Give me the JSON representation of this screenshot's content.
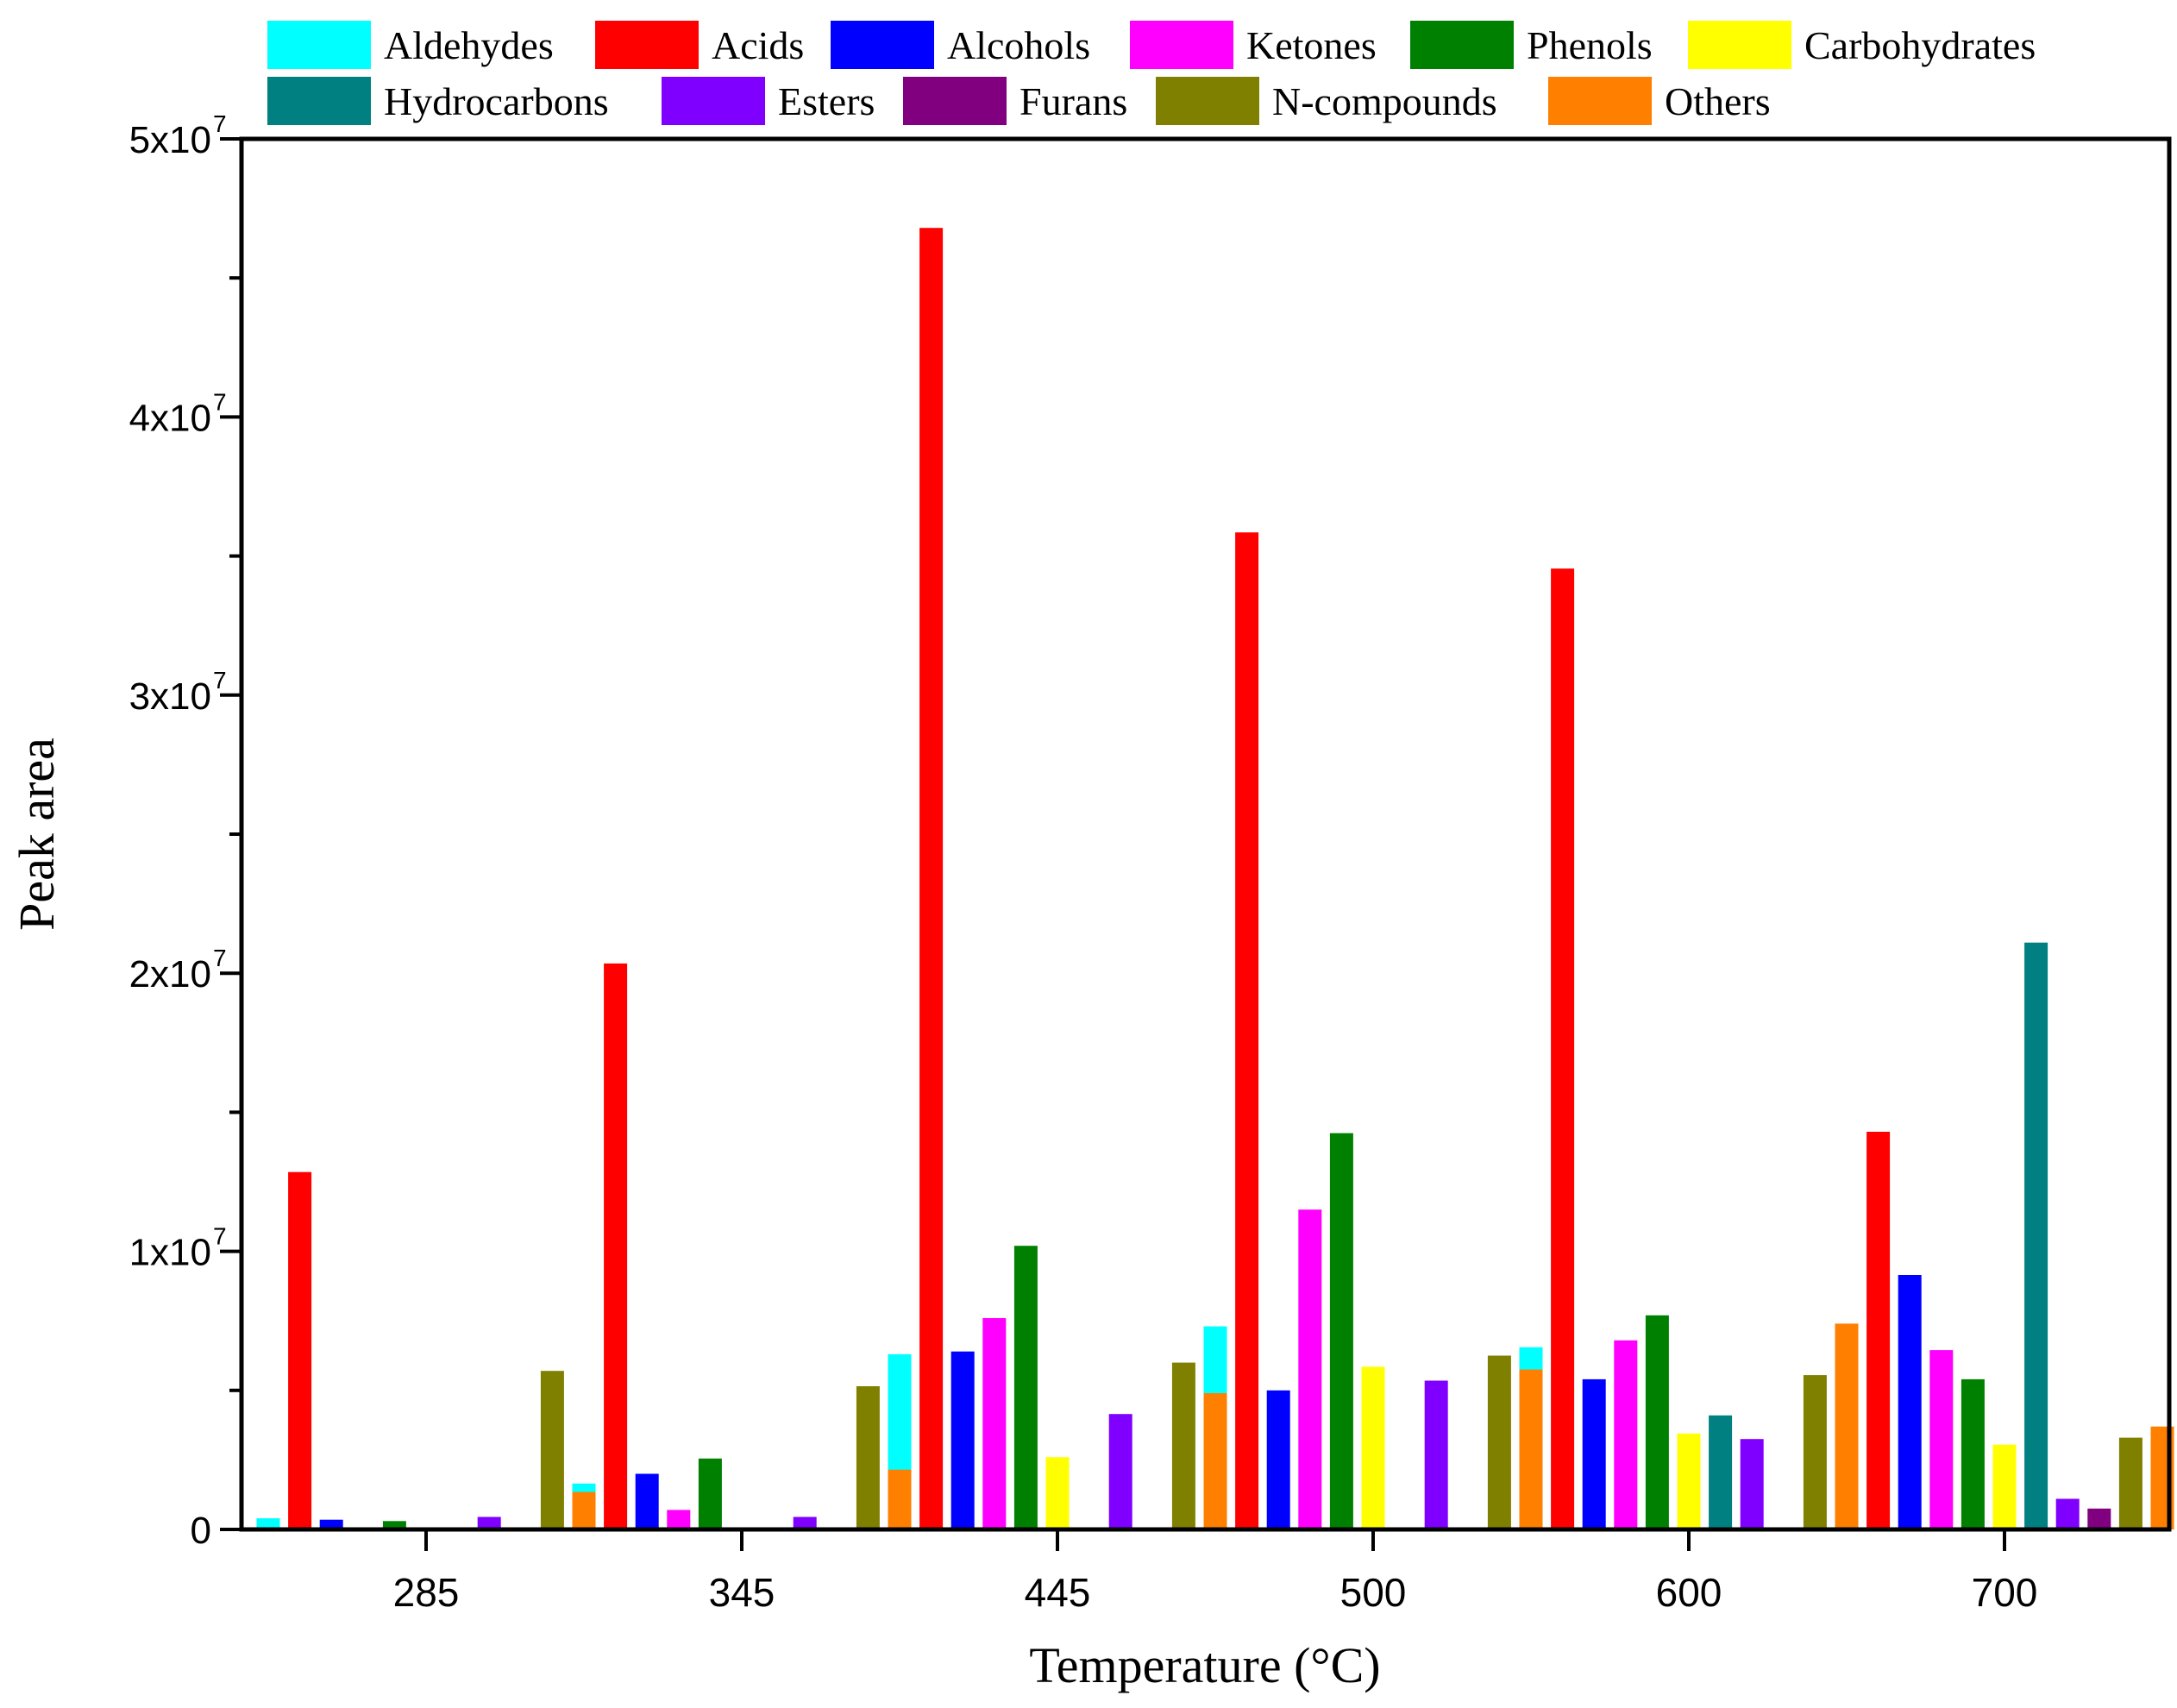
{
  "chart_data": {
    "type": "bar",
    "title": "",
    "xlabel": "Temperature (°C)",
    "ylabel": "Peak area",
    "ylim": [
      0,
      50000000
    ],
    "ytick_labels": [
      "0",
      "1x10",
      "2x10",
      "3x10",
      "4x10",
      "5x10"
    ],
    "ytick_values": [
      0,
      10000000,
      20000000,
      30000000,
      40000000,
      50000000
    ],
    "ytick_exponent": "7",
    "categories": [
      "285",
      "345",
      "445",
      "500",
      "600",
      "700"
    ],
    "legend_position": "top",
    "series": [
      {
        "name": "Aldehydes",
        "color": "#00FFFF",
        "values": [
          400000,
          1650000,
          6300000,
          7300000,
          6550000,
          1700000
        ]
      },
      {
        "name": "Acids",
        "color": "#FF0000",
        "values": [
          12850000,
          20350000,
          46800000,
          35850000,
          34550000,
          14300000
        ]
      },
      {
        "name": "Alcohols",
        "color": "#0000FF",
        "values": [
          350000,
          2000000,
          6400000,
          5000000,
          5400000,
          9150000
        ]
      },
      {
        "name": "Ketones",
        "color": "#FF00FF",
        "values": [
          0,
          700000,
          7600000,
          11500000,
          6800000,
          6450000
        ]
      },
      {
        "name": "Phenols",
        "color": "#008000",
        "values": [
          300000,
          2550000,
          10200000,
          14250000,
          7700000,
          5400000
        ]
      },
      {
        "name": "Carbohydrates",
        "color": "#FFFF00",
        "values": [
          0,
          0,
          2600000,
          5850000,
          3450000,
          3050000
        ]
      },
      {
        "name": "Hydrocarbons",
        "color": "#008080",
        "values": [
          0,
          0,
          0,
          0,
          4100000,
          21100000
        ]
      },
      {
        "name": "Esters",
        "color": "#8000FF",
        "values": [
          450000,
          450000,
          4150000,
          5350000,
          3250000,
          1100000
        ]
      },
      {
        "name": "Furans",
        "color": "#800080",
        "values": [
          0,
          0,
          0,
          0,
          0,
          750000
        ]
      },
      {
        "name": "N-compounds",
        "color": "#808000",
        "values": [
          5700000,
          5150000,
          6000000,
          6250000,
          5550000,
          3300000
        ]
      },
      {
        "name": "Others",
        "color": "#FF8000",
        "values": [
          1350000,
          2150000,
          4900000,
          5750000,
          7400000,
          3700000
        ]
      }
    ]
  }
}
